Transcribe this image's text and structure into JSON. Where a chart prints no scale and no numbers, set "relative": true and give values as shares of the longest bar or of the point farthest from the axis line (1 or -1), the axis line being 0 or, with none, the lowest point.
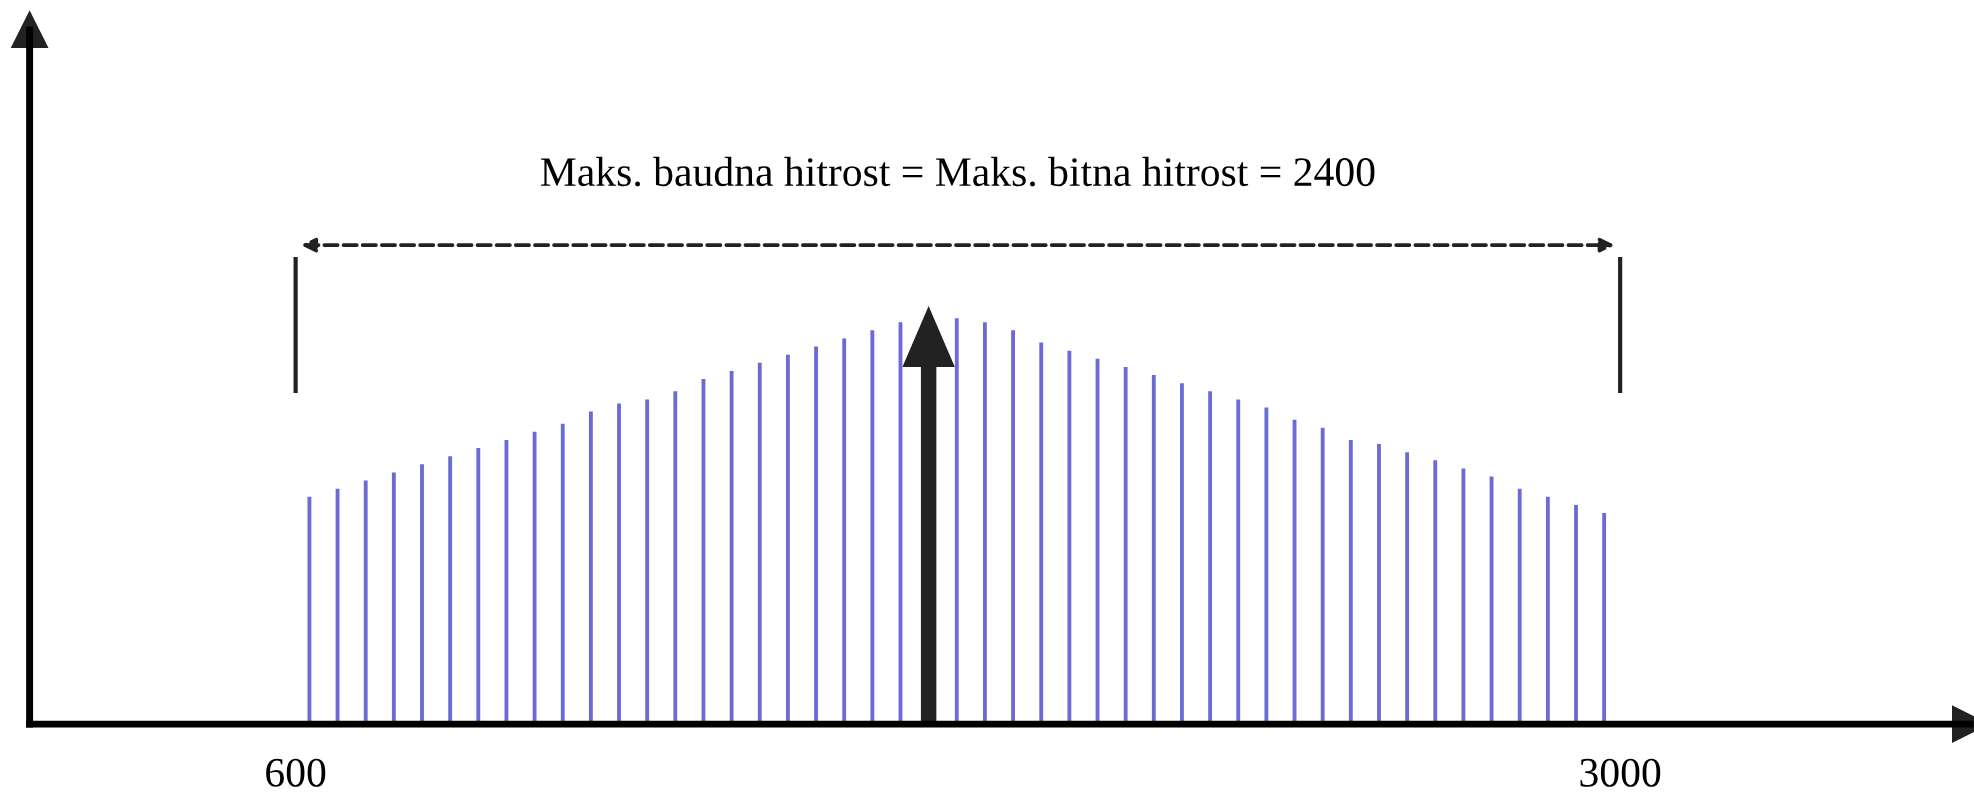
{
  "chart_data": {
    "type": "bar",
    "relative": true,
    "tick_labels": "x",
    "color": "#6b6bd8",
    "x": [
      625,
      676,
      727,
      778,
      829,
      880,
      931,
      982,
      1033,
      1084,
      1135,
      1186,
      1237,
      1288,
      1339,
      1390,
      1441,
      1492,
      1543,
      1594,
      1645,
      1696,
      1747,
      1798,
      1849,
      1900,
      1951,
      2002,
      2053,
      2104,
      2155,
      2206,
      2257,
      2308,
      2359,
      2410,
      2461,
      2512,
      2563,
      2614,
      2665,
      2716,
      2767,
      2818,
      2869,
      2920,
      2971
    ],
    "values": [
      0.56,
      0.58,
      0.6,
      0.62,
      0.64,
      0.66,
      0.68,
      0.7,
      0.72,
      0.74,
      0.77,
      0.79,
      0.8,
      0.82,
      0.85,
      0.87,
      0.89,
      0.91,
      0.93,
      0.95,
      0.97,
      0.99,
      null,
      1.0,
      0.99,
      0.97,
      0.94,
      0.92,
      0.9,
      0.88,
      0.86,
      0.84,
      0.82,
      0.8,
      0.78,
      0.75,
      0.73,
      0.7,
      0.69,
      0.67,
      0.65,
      0.63,
      0.61,
      0.58,
      0.56,
      0.54,
      0.52
    ],
    "xlim": [
      118,
      3634
    ],
    "xticks": [
      600,
      3000
    ],
    "ref_lines": [
      {
        "axis": "x",
        "value": 600
      },
      {
        "axis": "x",
        "value": 3000
      }
    ],
    "annotations": [
      "Maks. baudna hitrost = Maks. bitna hitrost = 2400"
    ]
  }
}
